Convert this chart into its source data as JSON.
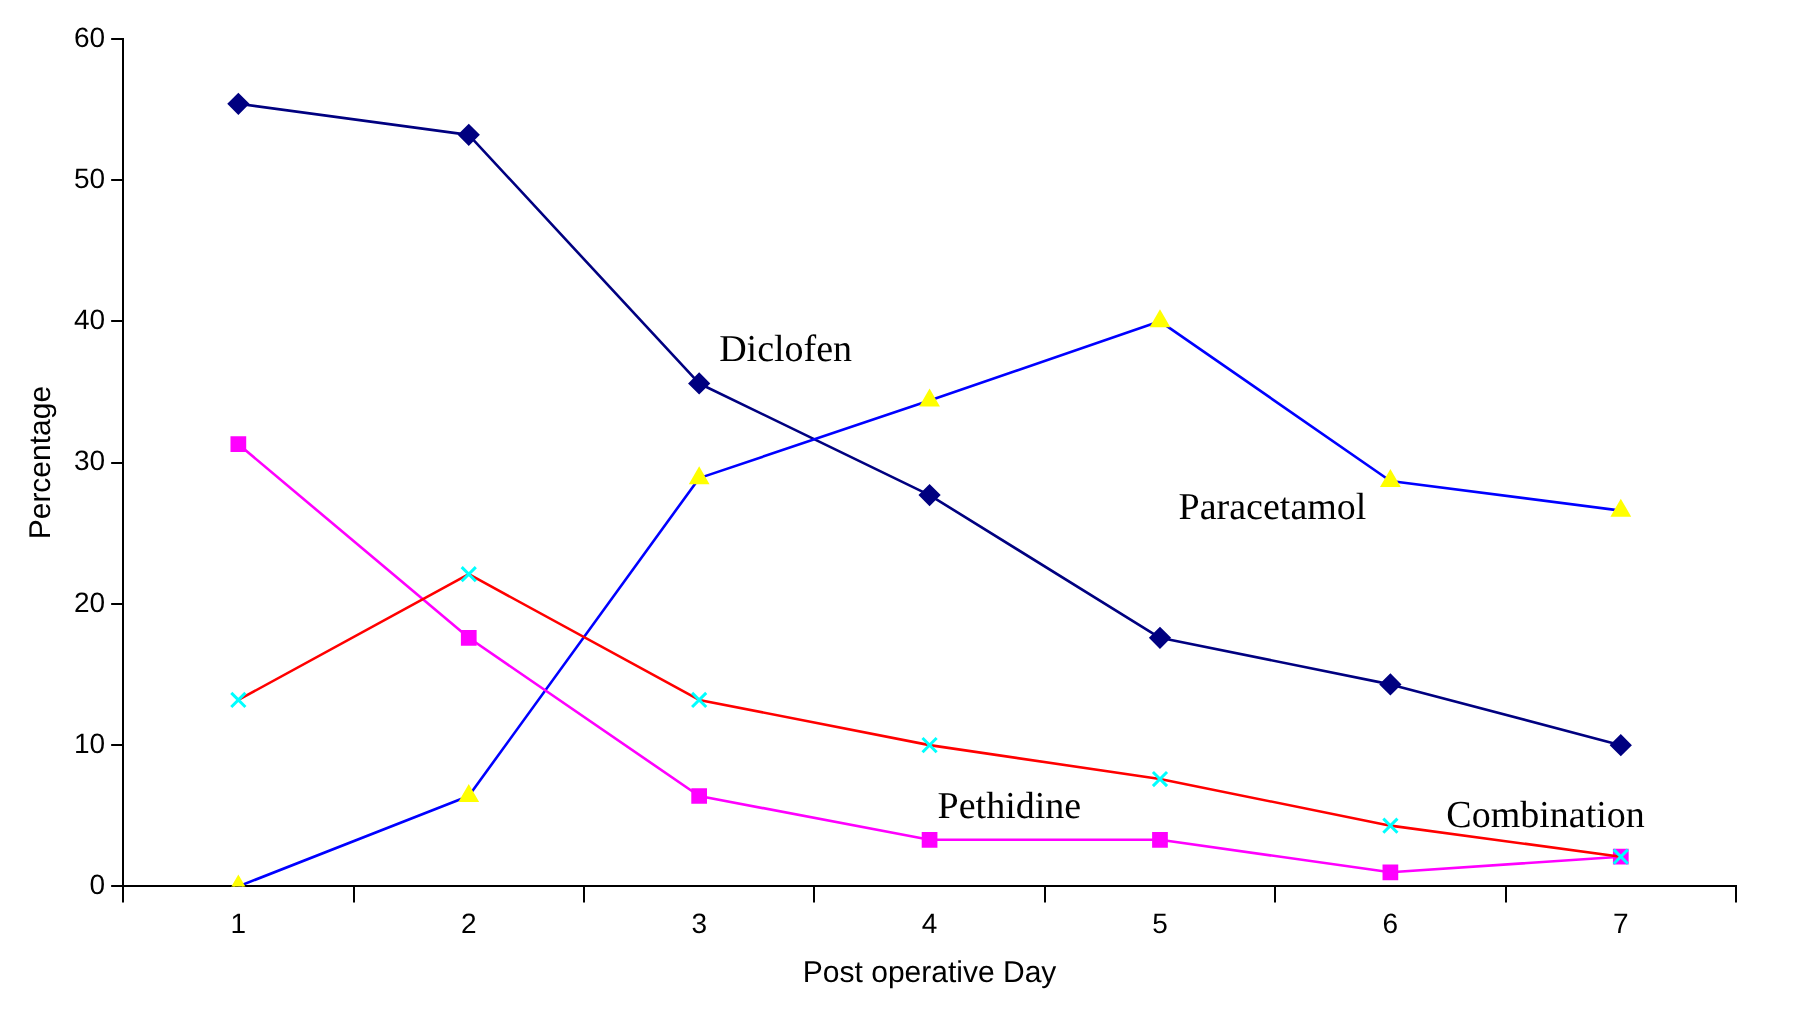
{
  "chart_data": {
    "type": "line",
    "xlabel": "Post operative Day",
    "ylabel": "Percentage",
    "categories": [
      "1",
      "2",
      "3",
      "4",
      "5",
      "6",
      "7"
    ],
    "ylim": [
      0,
      60
    ],
    "yticks": [
      0,
      10,
      20,
      30,
      40,
      50,
      60
    ],
    "grid": false,
    "legend": false,
    "series": [
      {
        "name": "Diclofen",
        "color": "#000080",
        "colors": [
          "#000080",
          "#000080",
          "#000080",
          "#000080",
          "#000080",
          "#000080",
          "#000080"
        ],
        "marker": "diamond",
        "values": [
          55.4,
          53.2,
          35.6,
          27.7,
          17.6,
          14.3,
          10.0
        ]
      },
      {
        "name": "Paracetamol",
        "color": "#0000ff",
        "colors": [
          "#ffff00",
          "#ffff00",
          "#ffff00",
          "#ffff00",
          "#ffff00",
          "#ffff00",
          "#ffff00"
        ],
        "marker": "triangle",
        "values": [
          0,
          6.4,
          28.9,
          34.4,
          40.0,
          28.7,
          26.6
        ]
      },
      {
        "name": "Pethidine",
        "color": "#ff00ff",
        "colors": [
          "#ff00ff",
          "#ff00ff",
          "#ff00ff",
          "#ff00ff",
          "#ff00ff",
          "#ff00ff",
          "#ff00ff"
        ],
        "marker": "square",
        "values": [
          31.3,
          17.6,
          6.4,
          3.3,
          3.3,
          1.0,
          2.1
        ]
      },
      {
        "name": "Combination",
        "color": "#ff0000",
        "colors": [
          "#00ffff",
          "#00ffff",
          "#00ffff",
          "#00ffff",
          "#00ffff",
          "#00ffff",
          "#00ffff"
        ],
        "marker": "cross",
        "values": [
          13.2,
          22.1,
          13.2,
          10.0,
          7.6,
          4.3,
          2.1
        ]
      }
    ]
  }
}
